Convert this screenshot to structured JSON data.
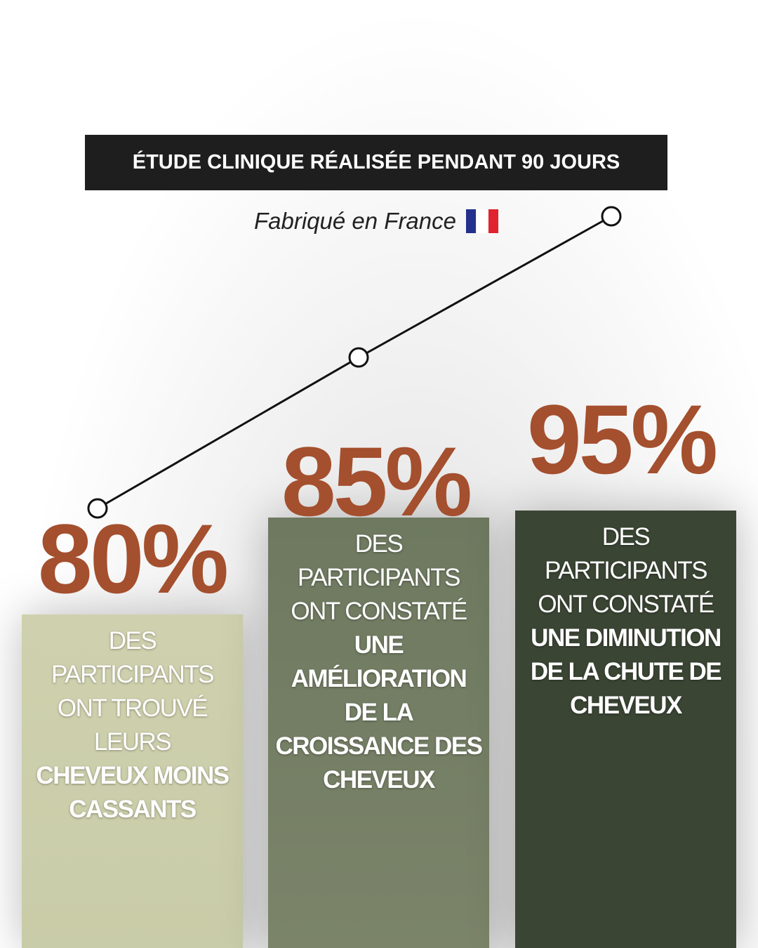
{
  "header": {
    "title": "ÉTUDE CLINIQUE RÉALISÉE PENDANT 90 JOURS",
    "subtitle": "Fabriqué en France"
  },
  "stats": [
    {
      "value": "80%",
      "text": "DES PARTICIPANTS ONT TROUVÉ LEURS",
      "highlight": "CHEVEUX MOINS CASSANTS"
    },
    {
      "value": "85%",
      "text": "DES PARTICIPANTS ONT CONSTATÉ",
      "highlight": "UNE AMÉLIORATION DE LA CROISSANCE DES CHEVEUX"
    },
    {
      "value": "95%",
      "text": "DES PARTICIPANTS ONT CONSTATÉ",
      "highlight": "UNE DIMINUTION DE LA CHUTE DE CHEVEUX"
    }
  ]
}
